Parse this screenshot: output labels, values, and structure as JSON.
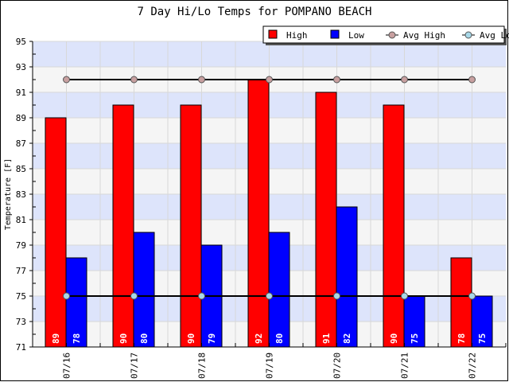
{
  "chart_data": {
    "type": "bar",
    "title": "7 Day Hi/Lo Temps for POMPANO BEACH",
    "xlabel": "",
    "ylabel": "Temperature [F]",
    "ylim": [
      71,
      95
    ],
    "yticks": [
      71,
      73,
      75,
      77,
      79,
      81,
      83,
      85,
      87,
      89,
      91,
      93,
      95
    ],
    "categories": [
      "07/16",
      "07/17",
      "07/18",
      "07/19",
      "07/20",
      "07/21",
      "07/22"
    ],
    "series": [
      {
        "name": "High",
        "kind": "bar",
        "color": "#ff0000",
        "values": [
          89,
          90,
          90,
          92,
          91,
          90,
          78
        ]
      },
      {
        "name": "Low",
        "kind": "bar",
        "color": "#0000ff",
        "values": [
          78,
          80,
          79,
          80,
          82,
          75,
          75
        ]
      },
      {
        "name": "Avg High",
        "kind": "line",
        "color": "#c8a0a0",
        "values": [
          92,
          92,
          92,
          92,
          92,
          92,
          92
        ]
      },
      {
        "name": "Avg Low",
        "kind": "line",
        "color": "#a8d8e8",
        "values": [
          75,
          75,
          75,
          75,
          75,
          75,
          75
        ]
      }
    ],
    "grid": true,
    "legend_position": "top-right",
    "band_colors": [
      "#f5f5f5",
      "#dde4fb"
    ]
  }
}
